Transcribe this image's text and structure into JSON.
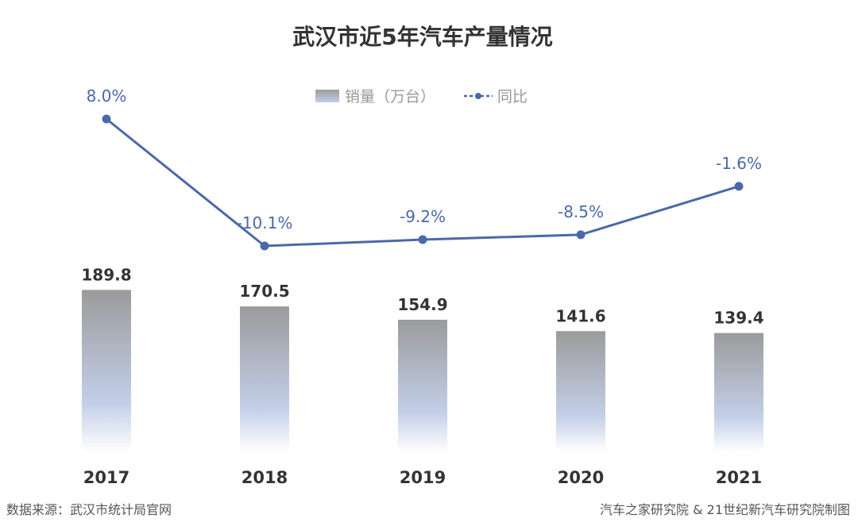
{
  "chart_data": {
    "type": "bar",
    "title": "武汉市近5年汽车产量情况",
    "categories": [
      "2017",
      "2018",
      "2019",
      "2020",
      "2021"
    ],
    "series": [
      {
        "name": "销量（万台）",
        "type": "bar",
        "values": [
          189.8,
          170.5,
          154.9,
          141.6,
          139.4
        ],
        "labels": [
          "189.8",
          "170.5",
          "154.9",
          "141.6",
          "139.4"
        ]
      },
      {
        "name": "同比",
        "type": "line",
        "values": [
          8.0,
          -10.1,
          -9.2,
          -8.5,
          -1.6
        ],
        "labels": [
          "8.0%",
          "-10.1%",
          "-9.2%",
          "-8.5%",
          "-1.6%"
        ],
        "unit": "%"
      }
    ],
    "legend_position": "top-center",
    "grid": false,
    "colors": {
      "bar_top": "#9b9b9b",
      "bar_bottom": "#c3cfe8",
      "line": "#4a69a8"
    }
  },
  "footer": {
    "source": "数据来源：武汉市统计局官网",
    "credit": "汽车之家研究院 & 21世纪新汽车研究院制图"
  }
}
